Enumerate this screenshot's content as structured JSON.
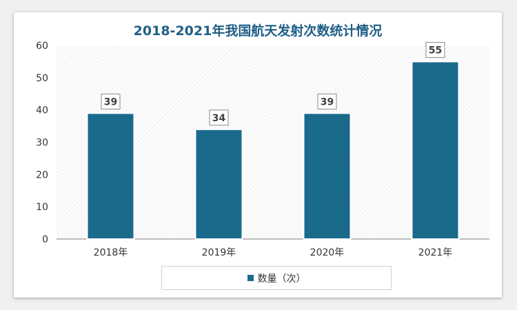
{
  "chart_data": {
    "type": "bar",
    "title": "2018-2021年我国航天发射次数统计情况",
    "categories": [
      "2018年",
      "2019年",
      "2020年",
      "2021年"
    ],
    "series": [
      {
        "name": "数量（次）",
        "values": [
          39,
          34,
          39,
          55
        ]
      }
    ],
    "data_labels": [
      "39",
      "34",
      "39",
      "55"
    ],
    "yticks": [
      "0",
      "10",
      "20",
      "30",
      "40",
      "50",
      "60"
    ],
    "ylim": [
      0,
      60
    ],
    "grid": false,
    "legend_position": "bottom",
    "colors": {
      "bar": "#1a6a8c",
      "title": "#1f5f86",
      "label_border": "#8a8a8a"
    }
  }
}
